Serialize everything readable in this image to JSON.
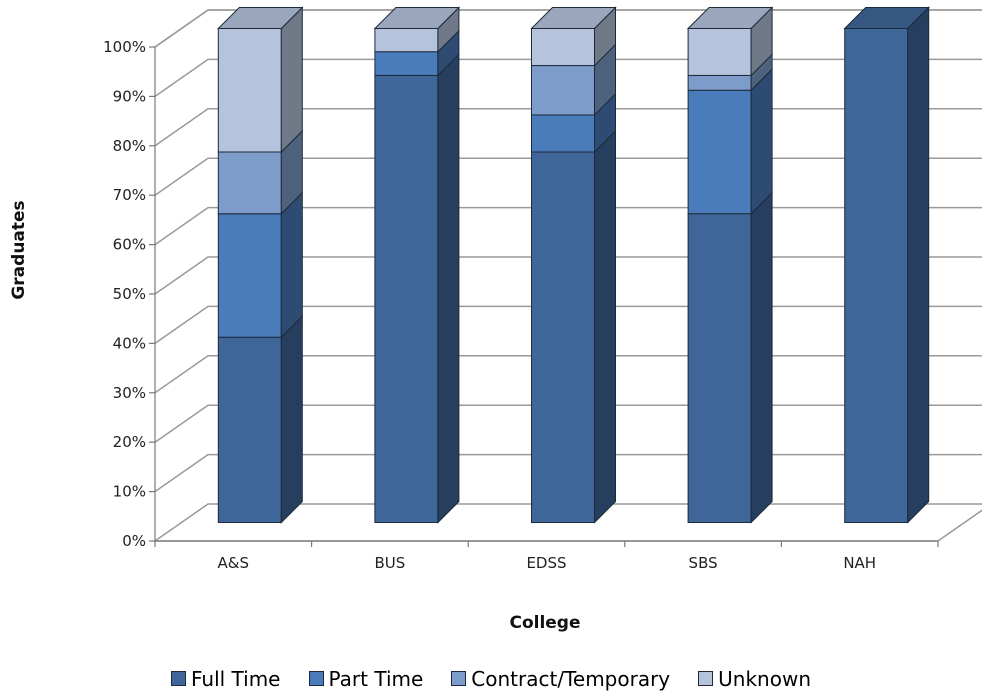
{
  "chart_data": {
    "type": "bar",
    "stacked": true,
    "three_d": true,
    "categories": [
      "A&S",
      "BUS",
      "EDSS",
      "SBS",
      "NAH"
    ],
    "series": [
      {
        "name": "Full Time",
        "color": "#3f6698",
        "values": [
          37.5,
          90.5,
          75,
          62.5,
          100
        ]
      },
      {
        "name": "Part Time",
        "color": "#4a7bba",
        "values": [
          25,
          4.8,
          7.5,
          25,
          0
        ]
      },
      {
        "name": "Contract/Temporary",
        "color": "#7e9cca",
        "values": [
          12.5,
          0,
          10,
          3,
          0
        ]
      },
      {
        "name": "Unknown",
        "color": "#b5c3dc",
        "values": [
          25,
          4.7,
          7.5,
          9.5,
          0
        ]
      }
    ],
    "xlabel": "College",
    "ylabel": "Graduates",
    "ylim": [
      0,
      100
    ],
    "y_ticks": [
      "0%",
      "10%",
      "20%",
      "30%",
      "40%",
      "50%",
      "60%",
      "70%",
      "80%",
      "90%",
      "100%"
    ],
    "grid": true,
    "legend": "bottom"
  }
}
